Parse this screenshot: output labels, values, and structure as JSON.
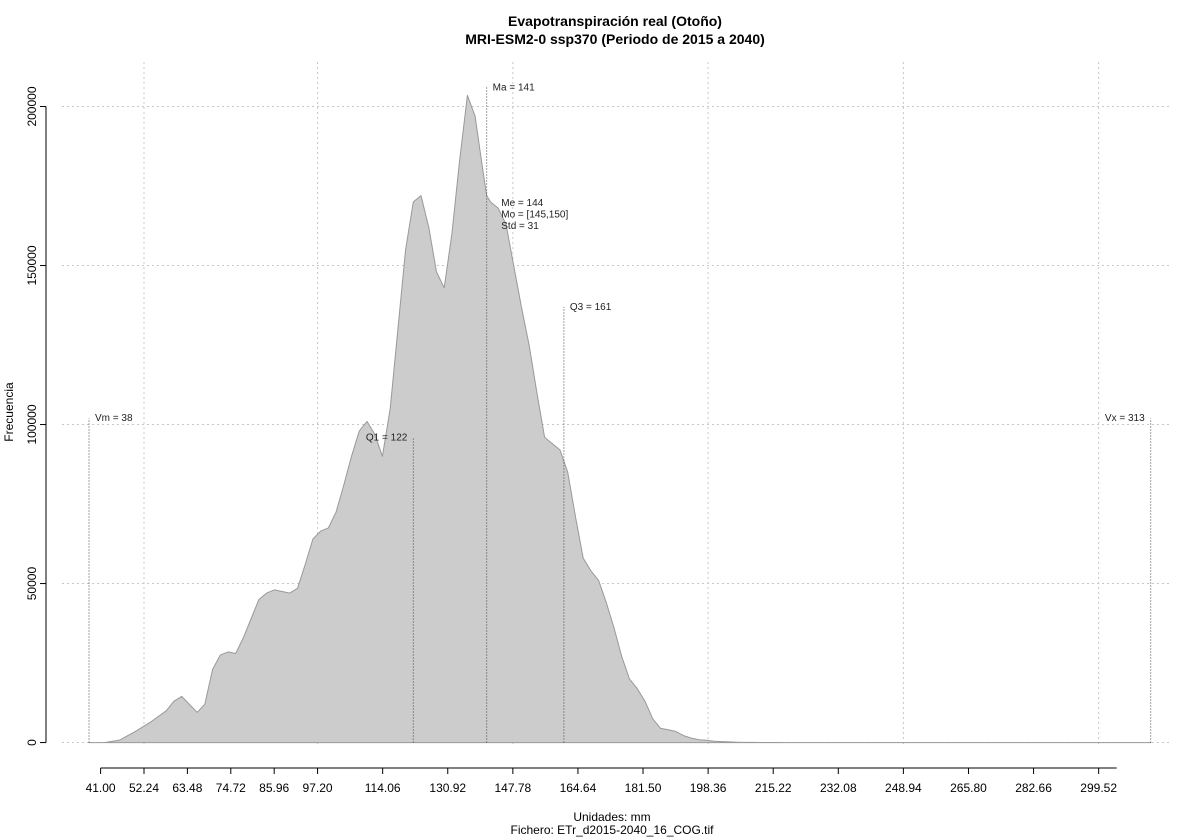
{
  "chart_data": {
    "type": "area",
    "title": "Evapotranspiración real (Otoño)",
    "subtitle": "MRI-ESM2-0 ssp370 (Periodo de 2015 a 2040)",
    "xlabel": "Unidades: mm",
    "ylabel": "Frecuencia",
    "footer": "Fichero: ETr_d2015-2040_16_COG.tif",
    "xlim": [
      31,
      318
    ],
    "ylim": [
      -8000,
      214000
    ],
    "grid": true,
    "fill_color": "#cccccc",
    "line_color": "#999999",
    "x_ticks": [
      "41.00",
      "52.24",
      "63.48",
      "74.72",
      "85.96",
      "97.20",
      "114.06",
      "130.92",
      "147.78",
      "164.64",
      "181.50",
      "198.36",
      "215.22",
      "232.08",
      "248.94",
      "265.80",
      "282.66",
      "299.52"
    ],
    "x_tick_values": [
      41.0,
      52.24,
      63.48,
      74.72,
      85.96,
      97.2,
      114.06,
      130.92,
      147.78,
      164.64,
      181.5,
      198.36,
      215.22,
      232.08,
      248.94,
      265.8,
      282.66,
      299.52
    ],
    "y_ticks": [
      "0",
      "50000",
      "100000",
      "150000",
      "200000"
    ],
    "y_tick_values": [
      0,
      50000,
      100000,
      150000,
      200000
    ],
    "x": [
      38,
      42,
      46,
      50,
      54,
      58,
      60,
      62,
      64,
      66,
      68,
      70,
      72,
      74,
      76,
      78,
      80,
      82,
      84,
      86,
      88,
      90,
      92,
      94,
      96,
      98,
      100,
      102,
      104,
      106,
      108,
      110,
      112,
      114,
      116,
      118,
      120,
      122,
      124,
      126,
      128,
      130,
      132,
      134,
      136,
      138,
      140,
      141,
      142,
      144,
      146,
      148,
      150,
      152,
      154,
      156,
      158,
      160,
      162,
      164,
      166,
      168,
      170,
      172,
      174,
      176,
      178,
      180,
      182,
      184,
      186,
      188,
      190,
      192,
      194,
      196,
      198,
      200,
      202,
      204,
      206,
      208,
      210,
      212,
      214,
      216,
      218,
      222,
      226,
      232,
      240,
      250,
      270,
      290,
      313
    ],
    "values": [
      0,
      0,
      800,
      3500,
      6500,
      10000,
      13000,
      14500,
      12000,
      9500,
      12000,
      23000,
      27500,
      28500,
      28000,
      33000,
      39000,
      45000,
      47000,
      48000,
      47500,
      47000,
      48500,
      56000,
      64000,
      66500,
      67500,
      72500,
      81000,
      90000,
      98000,
      101000,
      97000,
      90000,
      105000,
      130000,
      155000,
      170000,
      172000,
      162000,
      148000,
      143000,
      160000,
      183000,
      203500,
      197000,
      180000,
      172000,
      170000,
      168000,
      163000,
      150000,
      137000,
      125000,
      110000,
      96000,
      94000,
      92000,
      85000,
      71000,
      58000,
      54000,
      51000,
      44000,
      36000,
      27000,
      20000,
      17000,
      13000,
      7500,
      4500,
      4000,
      3500,
      2200,
      1400,
      900,
      700,
      400,
      300,
      200,
      100,
      60,
      40,
      20,
      10,
      5,
      0,
      0,
      0,
      0,
      0,
      0,
      0,
      0,
      0
    ],
    "markers": [
      {
        "label": "Vm = 38",
        "x": 38,
        "top": 102000
      },
      {
        "label": "Q1 = 122",
        "x": 122,
        "top": 96000
      },
      {
        "label": "Ma = 141",
        "x": 141,
        "top": 206000
      },
      {
        "label": "Q3 = 161",
        "x": 161,
        "top": 137000
      },
      {
        "label": "Vx = 313",
        "x": 313,
        "top": 102000
      }
    ],
    "stats": [
      "Me = 144",
      "Mo = [145,150]",
      "Std = 31"
    ]
  }
}
